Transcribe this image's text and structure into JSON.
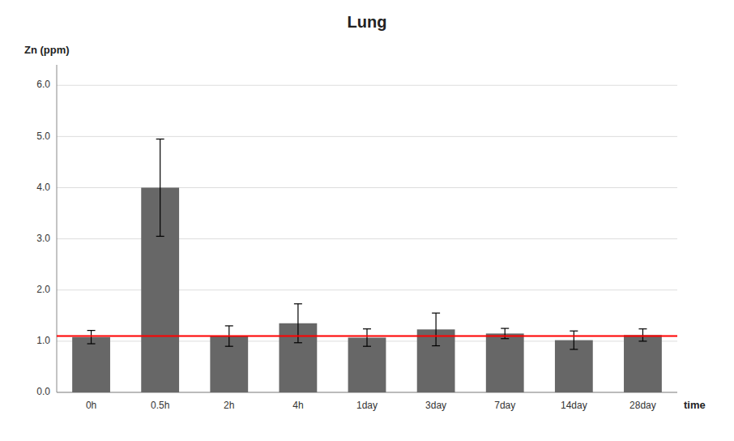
{
  "chart_data": {
    "type": "bar",
    "title": "Lung",
    "xlabel": "time",
    "ylabel": "Zn (ppm)",
    "categories": [
      "0h",
      "0.5h",
      "2h",
      "4h",
      "1day",
      "3day",
      "7day",
      "14day",
      "28day"
    ],
    "values": [
      1.08,
      4.0,
      1.1,
      1.35,
      1.07,
      1.23,
      1.15,
      1.02,
      1.12
    ],
    "errors": [
      0.13,
      0.95,
      0.2,
      0.38,
      0.17,
      0.32,
      0.1,
      0.18,
      0.12
    ],
    "color": "#676767",
    "reference_line": {
      "value": 1.1,
      "color": "#ff0000"
    },
    "ylim": [
      0,
      6.4
    ],
    "yticks": [
      {
        "value": 0,
        "label": "0.0"
      },
      {
        "value": 1,
        "label": "1.0"
      },
      {
        "value": 2,
        "label": "2.0"
      },
      {
        "value": 3,
        "label": "3.0"
      },
      {
        "value": 4,
        "label": "4.0"
      },
      {
        "value": 5,
        "label": "5.0"
      },
      {
        "value": 6,
        "label": "6.0"
      }
    ],
    "grid": true
  }
}
